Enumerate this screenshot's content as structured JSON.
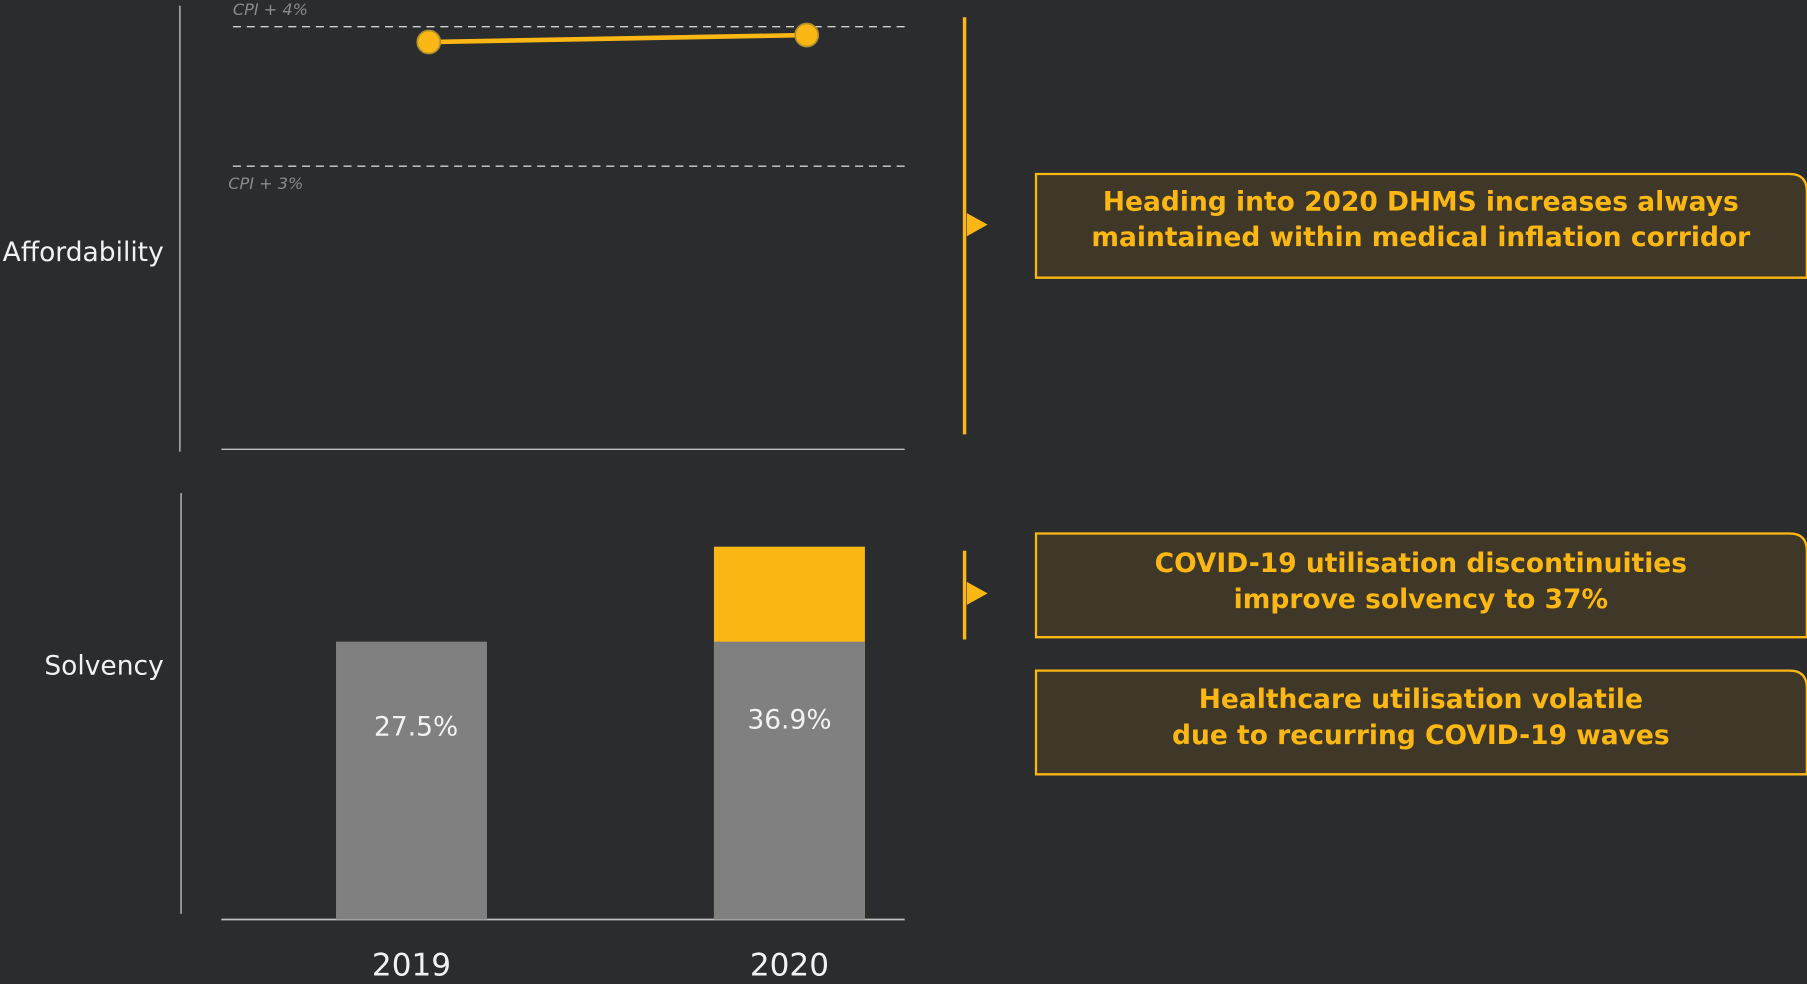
{
  "chart_data": [
    {
      "type": "line",
      "label": "Affordability",
      "values": [
        3.89,
        3.94
      ],
      "color": "#fbb714",
      "ylim": [
        0.97,
        4.15
      ],
      "yticks": [
        {
          "value": 4,
          "label": "CPI + 4%"
        },
        {
          "value": 3,
          "label": "CPI + 3%"
        }
      ]
    },
    {
      "type": "bar",
      "label": "Solvency",
      "categories": [
        "2019",
        "2020"
      ],
      "values": [
        27.5,
        36.9
      ],
      "value_labels": [
        "27.5%",
        "36.9%"
      ],
      "color": "#808080",
      "increase_color": "#fbb714",
      "ylim": [
        0,
        42.2
      ]
    }
  ],
  "annotations": [
    {
      "lines": [
        "Heading into 2020 DHMS increases always",
        "maintained within medical inflation corridor"
      ]
    },
    {
      "lines": [
        "COVID-19 utilisation discontinuities",
        "improve solvency to 37%"
      ]
    },
    {
      "lines": [
        "Healthcare utilisation volatile",
        "due to recurring COVID-19 waves"
      ]
    }
  ]
}
